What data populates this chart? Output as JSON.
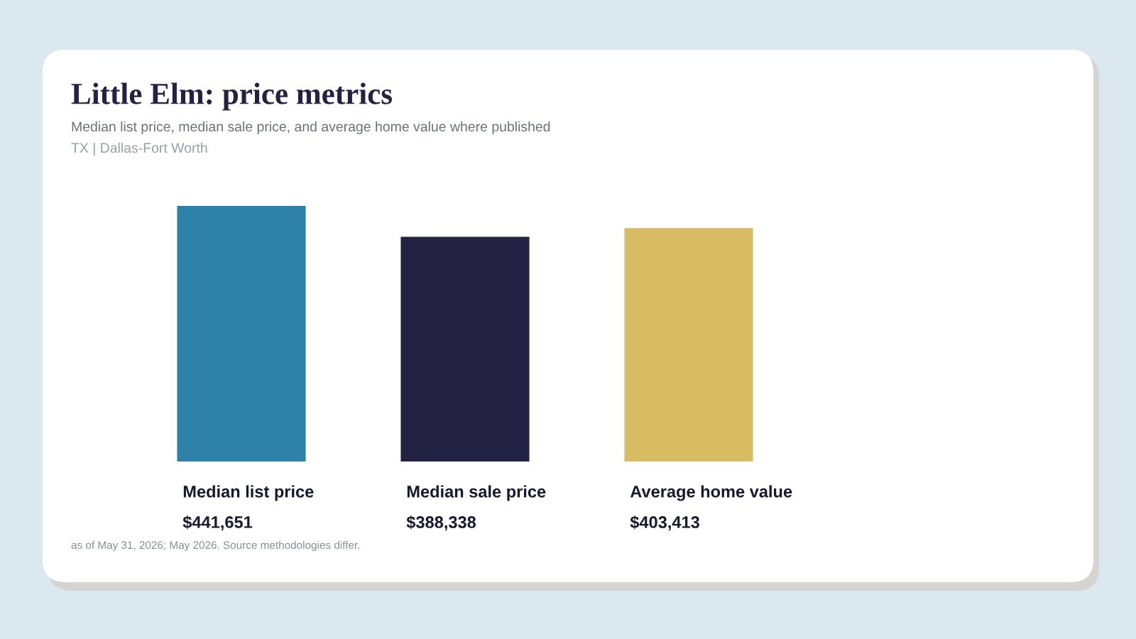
{
  "chart_data": {
    "type": "bar",
    "title": "Little Elm: price metrics",
    "subtitle": "Median list price, median sale price, and average home value where published",
    "categories": [
      "Median list price",
      "Median sale price",
      "Average home value"
    ],
    "values": [
      441651,
      388338,
      403413
    ],
    "value_labels": [
      "$441,651",
      "$388,338",
      "$403,413"
    ],
    "colors": [
      "#2e81a8",
      "#232243",
      "#d8bc64"
    ],
    "annotations": [
      "TX | Dallas-Fort Worth",
      "as of May 31, 2026; May 2026. Source methodologies differ."
    ]
  }
}
